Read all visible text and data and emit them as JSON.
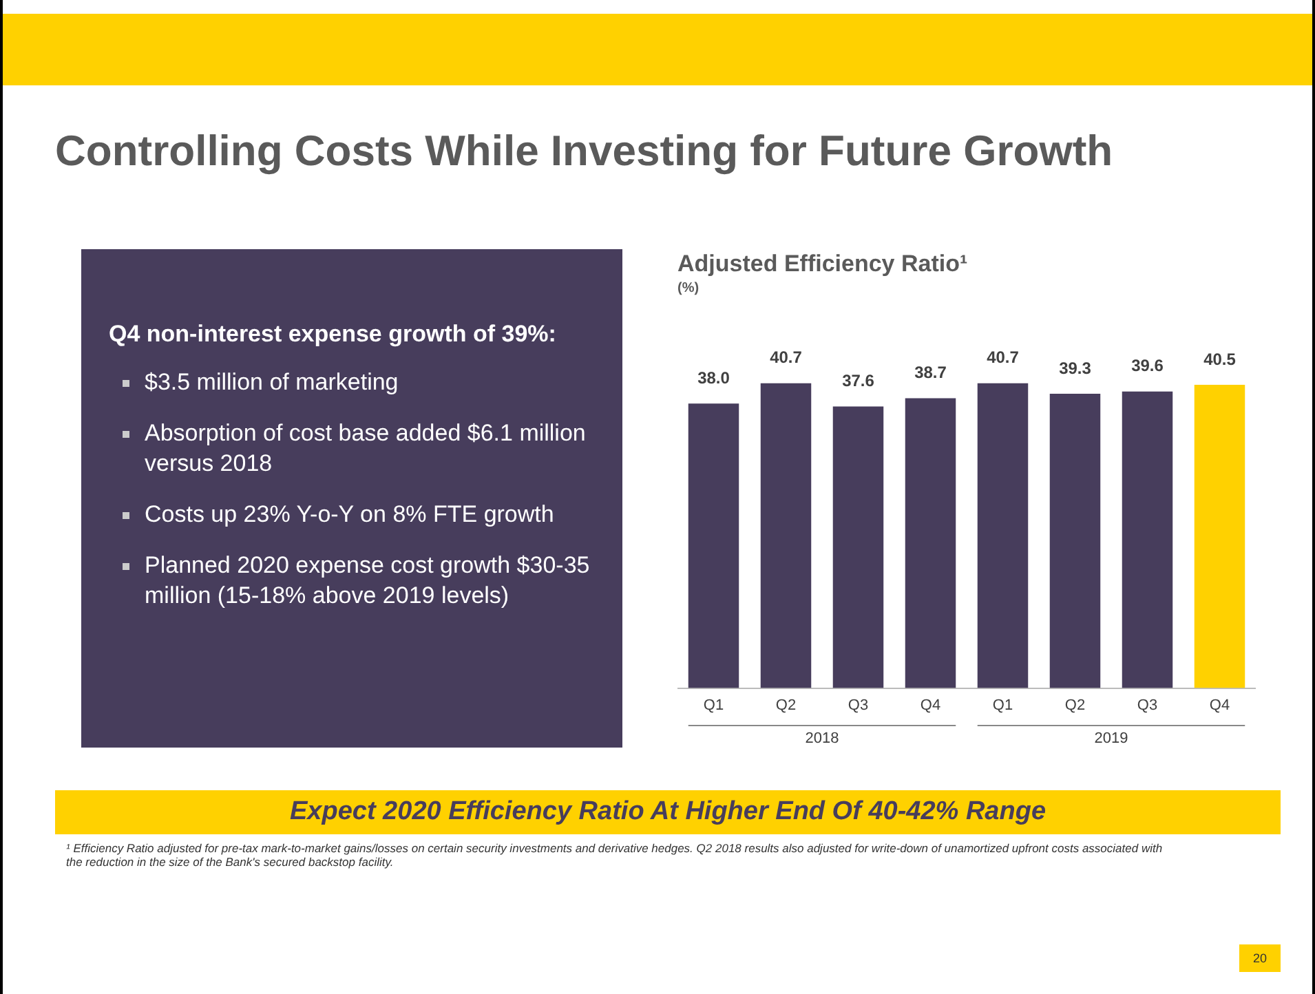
{
  "chart_data": {
    "type": "bar",
    "title": "Adjusted Efficiency Ratio¹",
    "subtitle": "(%)",
    "categories": [
      "Q1",
      "Q2",
      "Q3",
      "Q4",
      "Q1",
      "Q2",
      "Q3",
      "Q4"
    ],
    "values": [
      38.0,
      40.7,
      37.6,
      38.7,
      40.7,
      39.3,
      39.6,
      40.5
    ],
    "colors": [
      "#473d5c",
      "#473d5c",
      "#473d5c",
      "#473d5c",
      "#473d5c",
      "#473d5c",
      "#473d5c",
      "#ffd100"
    ],
    "value_labels": [
      "38.0",
      "40.7",
      "37.6",
      "38.7",
      "40.7",
      "39.3",
      "39.6",
      "40.5"
    ],
    "grid": false,
    "legend": false,
    "tick_labels": "x",
    "annotations": [
      "Controlling Costs While Investing for Future Growth",
      "Q4 non-interest expense growth of 39%:",
      "$3.5 million of marketing",
      "Absorption of cost base added $6.1 million versus 2018",
      "Costs up 23% Y-o-Y on 8% FTE growth",
      "Planned 2020 expense cost growth $30-35 million (15-18% above 2019 levels)",
      "Expect 2020 Efficiency Ratio At Higher End Of 40-42% Range",
      "¹ Efficiency Ratio adjusted for pre-tax mark-to-market gains/losses on certain security investments and derivative hedges. Q2 2018 results also adjusted for write-down of unamortized upfront costs associated with the reduction in the size of the Bank's secured backstop facility.",
      "20",
      "2018",
      "2019"
    ]
  }
}
